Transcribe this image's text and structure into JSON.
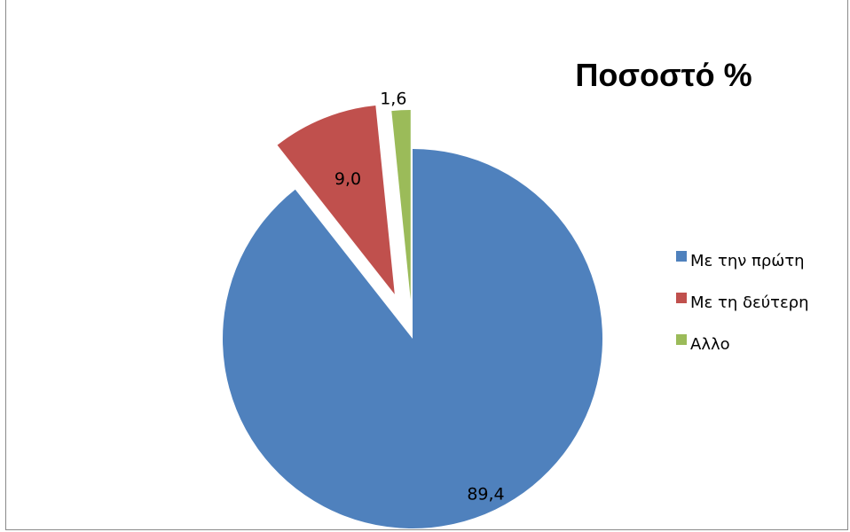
{
  "chart_data": {
    "type": "pie",
    "title": "Ποσοστό %",
    "categories": [
      "Με την πρώτη",
      "Με τη δεύτερη",
      "Αλλο"
    ],
    "values": [
      89.4,
      9.0,
      1.6
    ],
    "value_labels": [
      "89,4",
      "9,0",
      "1,6"
    ],
    "colors": [
      "#4f81bd",
      "#c0504d",
      "#9bbb59"
    ],
    "exploded": [
      false,
      true,
      true
    ],
    "legend_position": "right"
  }
}
